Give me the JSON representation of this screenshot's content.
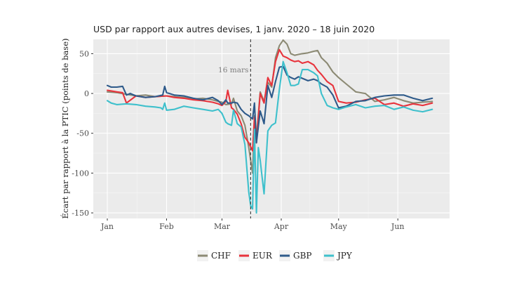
{
  "chart_data": {
    "type": "line",
    "title": "USD par rapport aux autres devises, 1 janv. 2020 – 18 juin 2020",
    "xlabel": "",
    "ylabel": "Écart par rapport à la PTIC (points de base)",
    "x_range_days": [
      0,
      171
    ],
    "ylim": [
      -157,
      68
    ],
    "yticks": [
      50,
      0,
      -50,
      -100,
      -150
    ],
    "ytick_labels": [
      "50",
      "0",
      "-50",
      "-100",
      "-150"
    ],
    "xticks": [
      0,
      31,
      60,
      91,
      121,
      152
    ],
    "xtick_labels": [
      "Jan",
      "Feb",
      "Mar",
      "Apr",
      "May",
      "Jun"
    ],
    "grid": true,
    "legend_position": "bottom",
    "annotation": {
      "label": "16 mars",
      "day": 75,
      "y": 30
    },
    "colors": {
      "CHF": "#8c8a74",
      "EUR": "#e8333c",
      "GBP": "#2e5a8a",
      "JPY": "#3ec0cc"
    },
    "series": [
      {
        "name": "CHF",
        "x": [
          0,
          5,
          10,
          15,
          20,
          25,
          31,
          35,
          40,
          45,
          50,
          55,
          58,
          60,
          62,
          65,
          66,
          68,
          70,
          72,
          74,
          76,
          77,
          78,
          80,
          82,
          84,
          86,
          88,
          90,
          92,
          94,
          96,
          98,
          100,
          102,
          105,
          108,
          110,
          112,
          115,
          118,
          121,
          125,
          130,
          135,
          140,
          145,
          150,
          155,
          160,
          165,
          170
        ],
        "values": [
          2,
          1,
          -1,
          -3,
          -2,
          -4,
          -3,
          -4,
          -5,
          -7,
          -6,
          -8,
          -10,
          -11,
          -14,
          -13,
          -6,
          -22,
          -28,
          -40,
          -68,
          -100,
          -28,
          -55,
          2,
          -10,
          14,
          8,
          45,
          60,
          67,
          62,
          50,
          48,
          49,
          50,
          51,
          53,
          54,
          45,
          38,
          27,
          20,
          12,
          2,
          0,
          -10,
          -8,
          -5,
          -9,
          -12,
          -11,
          -10
        ]
      },
      {
        "name": "EUR",
        "x": [
          0,
          5,
          8,
          10,
          15,
          20,
          25,
          31,
          35,
          40,
          45,
          50,
          55,
          58,
          60,
          62,
          63,
          65,
          66,
          68,
          70,
          72,
          74,
          76,
          77,
          78,
          80,
          82,
          84,
          86,
          88,
          90,
          92,
          94,
          96,
          98,
          100,
          102,
          105,
          108,
          110,
          112,
          115,
          118,
          121,
          125,
          130,
          135,
          140,
          145,
          150,
          155,
          160,
          165,
          170
        ],
        "values": [
          4,
          2,
          1,
          -12,
          -3,
          -5,
          -4,
          -3,
          -5,
          -6,
          -8,
          -9,
          -11,
          -13,
          -15,
          -10,
          4,
          -18,
          -20,
          -26,
          -38,
          -55,
          -62,
          -72,
          -30,
          -62,
          0,
          -12,
          20,
          10,
          40,
          55,
          47,
          45,
          42,
          40,
          41,
          38,
          40,
          36,
          29,
          24,
          15,
          10,
          -10,
          -12,
          -11,
          -8,
          -6,
          -14,
          -12,
          -16,
          -13,
          -15,
          -12
        ]
      },
      {
        "name": "GBP",
        "x": [
          0,
          2,
          5,
          8,
          10,
          12,
          15,
          20,
          25,
          29,
          30,
          31,
          35,
          40,
          45,
          50,
          55,
          58,
          60,
          62,
          63,
          65,
          66,
          68,
          70,
          72,
          74,
          76,
          77,
          78,
          80,
          82,
          84,
          86,
          88,
          90,
          92,
          94,
          96,
          98,
          100,
          102,
          105,
          108,
          110,
          112,
          115,
          118,
          121,
          125,
          130,
          135,
          140,
          145,
          150,
          155,
          160,
          165,
          170
        ],
        "values": [
          10,
          8,
          8,
          9,
          -2,
          0,
          -3,
          -5,
          -4,
          -2,
          9,
          1,
          -2,
          -3,
          -6,
          -8,
          -5,
          -9,
          -14,
          -8,
          -12,
          -12,
          -11,
          -12,
          -20,
          -25,
          -28,
          -32,
          -12,
          -62,
          -22,
          -38,
          10,
          -5,
          15,
          33,
          34,
          23,
          20,
          18,
          21,
          19,
          16,
          18,
          16,
          12,
          8,
          -2,
          -18,
          -16,
          -10,
          -9,
          -5,
          -3,
          -2,
          -2,
          -6,
          -9,
          -6
        ]
      },
      {
        "name": "JPY",
        "x": [
          0,
          2,
          5,
          10,
          15,
          20,
          25,
          28,
          29,
          30,
          31,
          35,
          40,
          45,
          50,
          55,
          58,
          60,
          62,
          63,
          65,
          66,
          68,
          70,
          72,
          74,
          75,
          76,
          77,
          78,
          79,
          80,
          81,
          82,
          84,
          86,
          88,
          90,
          92,
          94,
          96,
          98,
          100,
          102,
          105,
          108,
          110,
          112,
          115,
          118,
          121,
          125,
          130,
          135,
          140,
          145,
          150,
          155,
          160,
          165,
          170
        ],
        "values": [
          -9,
          -12,
          -14,
          -13,
          -14,
          -16,
          -17,
          -18,
          -20,
          -12,
          -21,
          -20,
          -16,
          -18,
          -20,
          -22,
          -20,
          -25,
          -36,
          -38,
          -40,
          -21,
          -38,
          -42,
          -64,
          -124,
          -141,
          -145,
          -45,
          -150,
          -68,
          -84,
          -105,
          -126,
          -47,
          -40,
          -37,
          5,
          40,
          26,
          10,
          10,
          12,
          30,
          30,
          26,
          22,
          0,
          -15,
          -18,
          -20,
          -17,
          -14,
          -18,
          -16,
          -15,
          -20,
          -17,
          -21,
          -23,
          -20
        ]
      }
    ]
  }
}
